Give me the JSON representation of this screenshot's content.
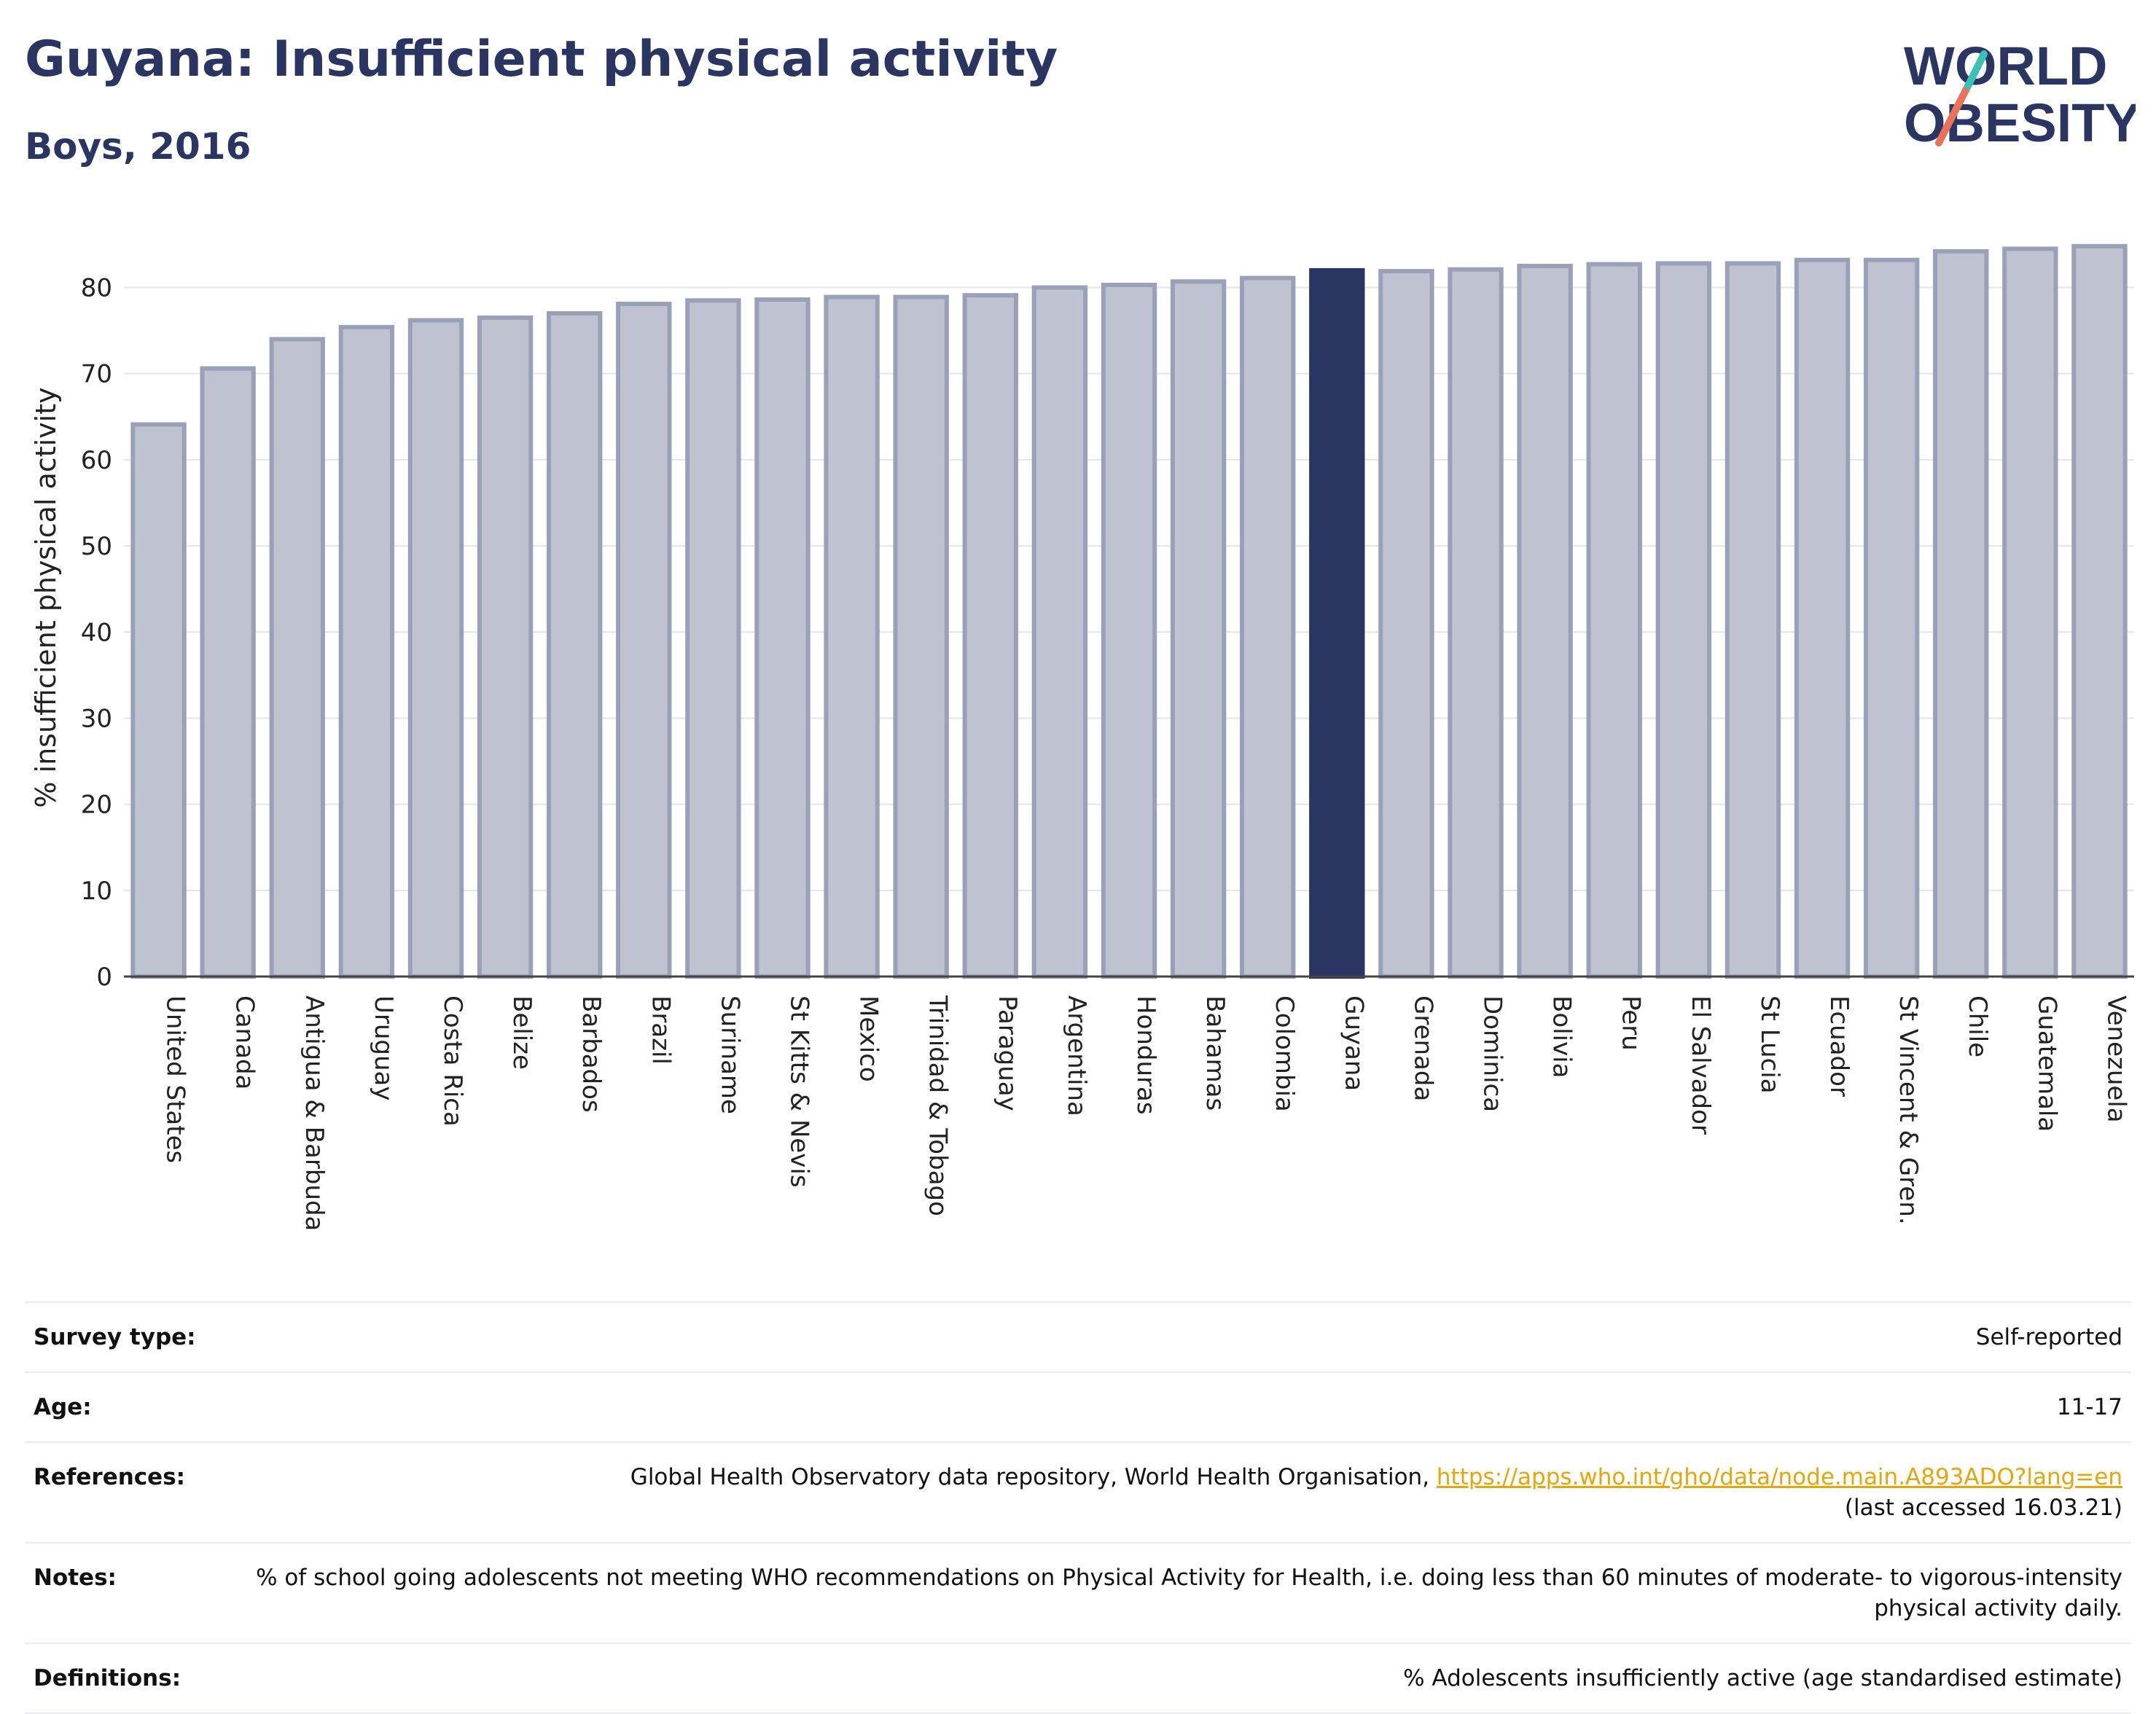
{
  "header": {
    "title": "Guyana: Insufficient physical activity",
    "subtitle": "Boys, 2016"
  },
  "logo": {
    "line1": "WORLD",
    "line2": "OBESITY"
  },
  "colors": {
    "highlight": "#2b3561",
    "bar": "#bfc2d0",
    "bar_border": "#9aa0b8",
    "text": "#2b3561"
  },
  "chart_data": {
    "type": "bar",
    "title": "Guyana: Insufficient physical activity",
    "subtitle": "Boys, 2016",
    "ylabel": "% insufficient physical activity",
    "xlabel": "",
    "ylim": [
      0,
      88
    ],
    "yticks": [
      0,
      10,
      20,
      30,
      40,
      50,
      60,
      70,
      80
    ],
    "grid": true,
    "highlight": "Guyana",
    "categories": [
      "United States",
      "Canada",
      "Antigua & Barbuda",
      "Uruguay",
      "Costa Rica",
      "Belize",
      "Barbados",
      "Brazil",
      "Suriname",
      "St Kitts & Nevis",
      "Mexico",
      "Trinidad & Tobago",
      "Paraguay",
      "Argentina",
      "Honduras",
      "Bahamas",
      "Colombia",
      "Guyana",
      "Grenada",
      "Dominica",
      "Bolivia",
      "Peru",
      "El Salvador",
      "St Lucia",
      "Ecuador",
      "St Vincent & Gren.",
      "Chile",
      "Guatemala",
      "Venezuela"
    ],
    "values": [
      64.1,
      70.6,
      74.0,
      75.4,
      76.2,
      76.5,
      77.0,
      78.1,
      78.5,
      78.6,
      78.9,
      78.9,
      79.1,
      80.0,
      80.3,
      80.7,
      81.1,
      82.0,
      81.9,
      82.1,
      82.5,
      82.7,
      82.8,
      82.8,
      83.2,
      83.2,
      84.2,
      84.5,
      84.8
    ]
  },
  "info": {
    "survey_type": {
      "label": "Survey type:",
      "value": "Self-reported"
    },
    "age": {
      "label": "Age:",
      "value": "11-17"
    },
    "references": {
      "label": "References:",
      "text": "Global Health Observatory data repository, World Health Organisation, ",
      "link": "https://apps.who.int/gho/data/node.main.A893ADO?lang=en",
      "accessed": "(last accessed 16.03.21)"
    },
    "notes": {
      "label": "Notes:",
      "value": "% of school going adolescents not meeting WHO recommendations on Physical Activity for Health, i.e. doing less than 60 minutes of moderate- to vigorous-intensity physical activity daily."
    },
    "definitions": {
      "label": "Definitions:",
      "value": "% Adolescents insufficiently active (age standardised estimate)"
    }
  }
}
